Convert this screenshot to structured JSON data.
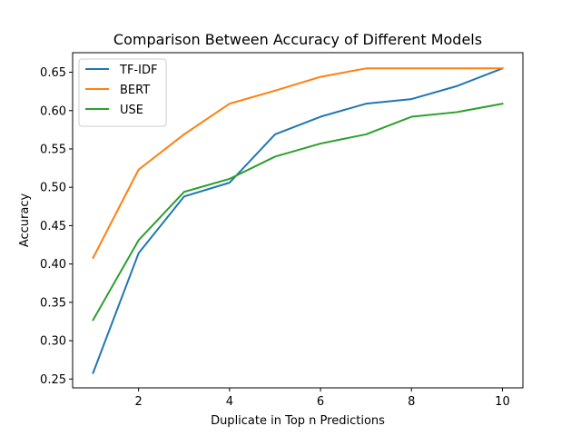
{
  "chart_data": {
    "type": "line",
    "title": "Comparison Between Accuracy of Different Models",
    "xlabel": "Duplicate in Top n Predictions",
    "ylabel": "Accuracy",
    "x": [
      1,
      2,
      3,
      4,
      5,
      6,
      7,
      8,
      9,
      10
    ],
    "xticks": [
      2,
      4,
      6,
      8,
      10
    ],
    "yticks": [
      0.25,
      0.3,
      0.35,
      0.4,
      0.45,
      0.5,
      0.55,
      0.6,
      0.65
    ],
    "xlim": [
      0.55,
      10.45
    ],
    "ylim": [
      0.2385,
      0.6755
    ],
    "grid": false,
    "legend_position": "upper-left",
    "series": [
      {
        "name": "TF-IDF",
        "color": "#1f77b4",
        "values": [
          0.258,
          0.414,
          0.488,
          0.506,
          0.569,
          0.592,
          0.609,
          0.615,
          0.632,
          0.655
        ]
      },
      {
        "name": "BERT",
        "color": "#ff7f0e",
        "values": [
          0.408,
          0.523,
          0.569,
          0.609,
          0.626,
          0.644,
          0.655,
          0.655,
          0.655,
          0.655
        ]
      },
      {
        "name": "USE",
        "color": "#2ca02c",
        "values": [
          0.327,
          0.431,
          0.494,
          0.511,
          0.54,
          0.557,
          0.569,
          0.592,
          0.598,
          0.609
        ]
      }
    ]
  }
}
